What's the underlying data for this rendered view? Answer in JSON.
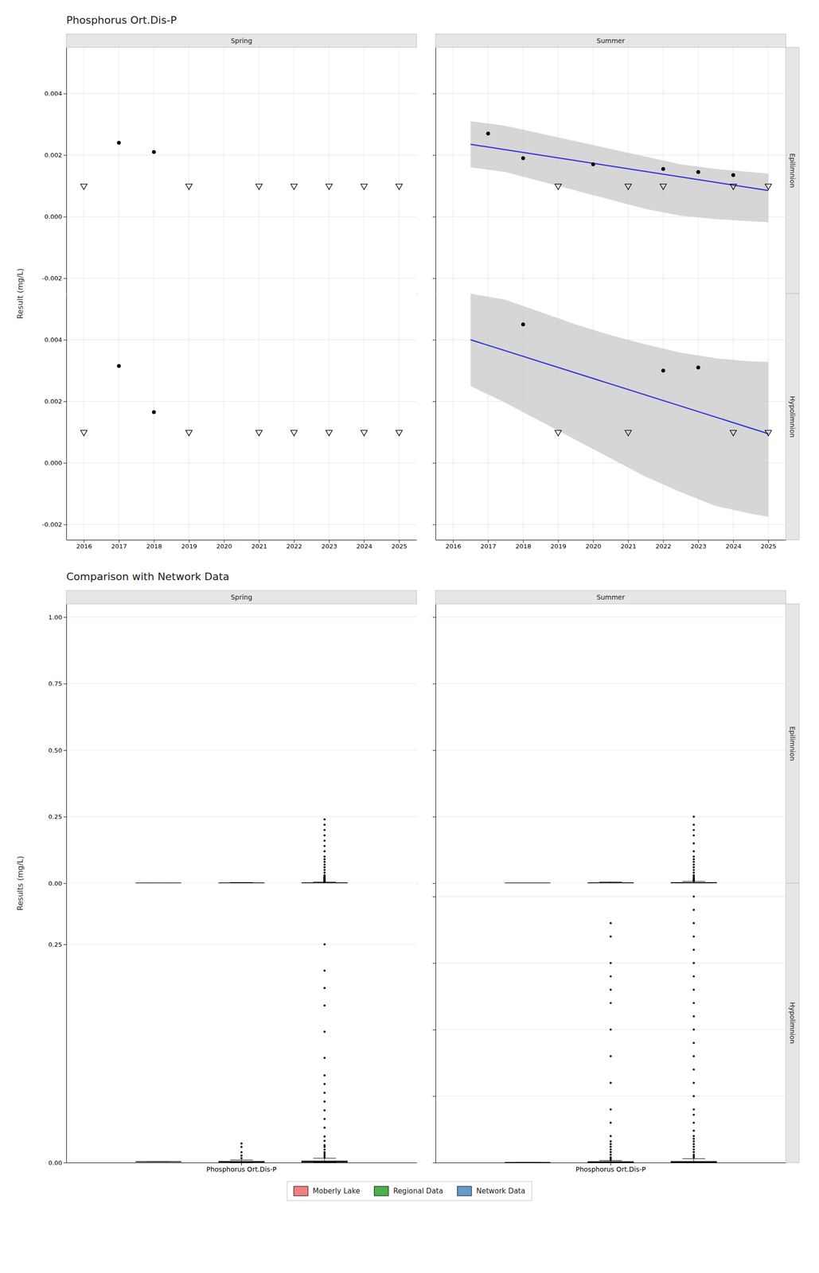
{
  "chart_data": [
    {
      "type": "scatter",
      "title": "Phosphorus Ort.Dis-P",
      "ylabel": "Result (mg/L)",
      "columns": [
        "Spring",
        "Summer"
      ],
      "rows": [
        "Epilimnion",
        "Hypolimnion"
      ],
      "xlim": [
        2015.5,
        2025.5
      ],
      "xticks": [
        2016,
        2017,
        2018,
        2019,
        2020,
        2021,
        2022,
        2023,
        2024,
        2025
      ],
      "ylim": [
        -0.0025,
        0.0055
      ],
      "yticks": [
        {
          "value": -0.002,
          "label": "-0.002"
        },
        {
          "value": 0.0,
          "label": "0.000"
        },
        {
          "value": 0.002,
          "label": "0.002"
        },
        {
          "value": 0.004,
          "label": "0.004"
        }
      ],
      "grid": true,
      "panels": [
        {
          "tick_labels": "y",
          "series": [
            {
              "type": "scatter",
              "marker": "triangle-down-open",
              "color": "#000000",
              "x": [
                2016,
                2019,
                2021,
                2022,
                2023,
                2024,
                2025
              ],
              "values": [
                0.001,
                0.001,
                0.001,
                0.001,
                0.001,
                0.001,
                0.001
              ]
            },
            {
              "type": "scatter",
              "marker": "circle",
              "color": "#000000",
              "x": [
                2017,
                2018
              ],
              "values": [
                0.0024,
                0.0021
              ]
            }
          ]
        },
        {
          "tick_labels": false,
          "series": [
            {
              "type": "area",
              "color": "#c0c0c0",
              "x": [
                2016.5,
                2017.5,
                2018.5,
                2019.5,
                2020.5,
                2021.5,
                2022.5,
                2023.5,
                2024.5,
                2025.0
              ],
              "upper": [
                0.0031,
                0.00295,
                0.0027,
                0.00245,
                0.0022,
                0.00195,
                0.0017,
                0.00155,
                0.00145,
                0.0014
              ],
              "lower": [
                0.0016,
                0.00145,
                0.00115,
                0.00085,
                0.00055,
                0.00025,
                3e-05,
                -8e-05,
                -0.00015,
                -0.00018
              ]
            },
            {
              "type": "line",
              "color": "#3333dd",
              "x": [
                2016.5,
                2025.0
              ],
              "values": [
                0.00235,
                0.00085
              ]
            },
            {
              "type": "scatter",
              "marker": "triangle-down-open",
              "color": "#000000",
              "x": [
                2019,
                2021,
                2022,
                2024,
                2025
              ],
              "values": [
                0.001,
                0.001,
                0.001,
                0.001,
                0.001
              ]
            },
            {
              "type": "scatter",
              "marker": "circle",
              "color": "#000000",
              "x": [
                2017,
                2018,
                2020,
                2022,
                2023,
                2024
              ],
              "values": [
                0.0027,
                0.0019,
                0.0017,
                0.00155,
                0.00145,
                0.00135
              ]
            }
          ]
        },
        {
          "series": [
            {
              "type": "scatter",
              "marker": "triangle-down-open",
              "color": "#000000",
              "x": [
                2016,
                2019,
                2021,
                2022,
                2023,
                2024,
                2025
              ],
              "values": [
                0.001,
                0.001,
                0.001,
                0.001,
                0.001,
                0.001,
                0.001
              ]
            },
            {
              "type": "scatter",
              "marker": "circle",
              "color": "#000000",
              "x": [
                2017,
                2018
              ],
              "values": [
                0.00315,
                0.00165
              ]
            }
          ]
        },
        {
          "tick_labels": "x",
          "series": [
            {
              "type": "area",
              "color": "#c0c0c0",
              "x": [
                2016.5,
                2017.5,
                2018.5,
                2019.5,
                2020.5,
                2021.5,
                2022.5,
                2023.5,
                2024.5,
                2025.0
              ],
              "upper": [
                0.0055,
                0.0053,
                0.0049,
                0.0045,
                0.00415,
                0.00385,
                0.00358,
                0.0034,
                0.0033,
                0.00328
              ],
              "lower": [
                0.0025,
                0.00195,
                0.00135,
                0.00075,
                0.00015,
                -0.00045,
                -0.00095,
                -0.0014,
                -0.00165,
                -0.00175
              ]
            },
            {
              "type": "line",
              "color": "#3333dd",
              "x": [
                2016.5,
                2025.0
              ],
              "values": [
                0.004,
                0.00095
              ]
            },
            {
              "type": "scatter",
              "marker": "triangle-down-open",
              "color": "#000000",
              "x": [
                2019,
                2021,
                2024,
                2025
              ],
              "values": [
                0.001,
                0.001,
                0.001,
                0.001
              ]
            },
            {
              "type": "scatter",
              "marker": "circle",
              "color": "#000000",
              "x": [
                2018,
                2022,
                2023
              ],
              "values": [
                0.0045,
                0.003,
                0.0031
              ]
            }
          ]
        }
      ]
    },
    {
      "type": "box",
      "title": "Comparison with Network Data",
      "ylabel": "Results (mg/L)",
      "columns": [
        "Spring",
        "Summer"
      ],
      "rows": [
        "Epilimnion",
        "Hypolimnion"
      ],
      "categories": [
        "Phosphorus Ort.Dis-P"
      ],
      "series": [
        {
          "name": "Moberly Lake",
          "color": "#f08080"
        },
        {
          "name": "Regional Data",
          "color": "#4daf4a"
        },
        {
          "name": "Network Data",
          "color": "#6699cc"
        }
      ],
      "legend": "bottom",
      "grid": true,
      "panels": [
        {
          "tick_labels": "y",
          "ylim": [
            0,
            1.05
          ],
          "yticks": [
            {
              "value": 0.0,
              "label": "0.00"
            },
            0.25,
            {
              "value": 0.5,
              "label": "0.50"
            },
            0.75,
            {
              "value": 1.0,
              "label": "1.00"
            }
          ],
          "boxes": [
            {
              "median": 0.001,
              "q1": 0.001,
              "q3": 0.001,
              "wlo": 0.001,
              "whi": 0.001,
              "out": []
            },
            {
              "median": 0.001,
              "q1": 0.0005,
              "q3": 0.0015,
              "wlo": 0.0001,
              "whi": 0.003,
              "out": []
            },
            {
              "median": 0.001,
              "q1": 0.0005,
              "q3": 0.002,
              "wlo": 0.0001,
              "whi": 0.005,
              "out": [
                0.006,
                0.007,
                0.008,
                0.009,
                0.01,
                0.011,
                0.012,
                0.013,
                0.014,
                0.015,
                0.016,
                0.017,
                0.018,
                0.019,
                0.02,
                0.021,
                0.022,
                0.023,
                0.024,
                0.025,
                0.03,
                0.04,
                0.05,
                0.06,
                0.07,
                0.08,
                0.09,
                0.1,
                0.12,
                0.14,
                0.16,
                0.18,
                0.2,
                0.22,
                0.24
              ]
            }
          ]
        },
        {
          "tick_labels": false,
          "ylim": [
            0,
            1.05
          ],
          "yticks": [
            {
              "value": 0.0,
              "label": "0.00"
            },
            0.25,
            {
              "value": 0.5,
              "label": "0.50"
            },
            0.75,
            {
              "value": 1.0,
              "label": "1.00"
            }
          ],
          "boxes": [
            {
              "median": 0.001,
              "q1": 0.001,
              "q3": 0.001,
              "wlo": 0.001,
              "whi": 0.001,
              "out": []
            },
            {
              "median": 0.001,
              "q1": 0.0005,
              "q3": 0.002,
              "wlo": 0.0001,
              "whi": 0.005,
              "out": []
            },
            {
              "median": 0.001,
              "q1": 0.0005,
              "q3": 0.003,
              "wlo": 0.0001,
              "whi": 0.007,
              "out": [
                0.008,
                0.009,
                0.01,
                0.012,
                0.014,
                0.016,
                0.018,
                0.02,
                0.025,
                0.03,
                0.04,
                0.05,
                0.06,
                0.07,
                0.08,
                0.09,
                0.1,
                0.12,
                0.15,
                0.18,
                0.2,
                0.22,
                0.25
              ]
            }
          ]
        },
        {
          "ylim": [
            0,
            0.32
          ],
          "yticks": [
            {
              "value": 0.0,
              "label": "0.00"
            },
            0.25
          ],
          "boxes": [
            {
              "median": 0.001,
              "q1": 0.001,
              "q3": 0.001,
              "wlo": 0.001,
              "whi": 0.001,
              "out": []
            },
            {
              "median": 0.001,
              "q1": 0.0005,
              "q3": 0.0015,
              "wlo": 0.0001,
              "whi": 0.003,
              "out": [
                0.005,
                0.008,
                0.012,
                0.018,
                0.022
              ]
            },
            {
              "median": 0.001,
              "q1": 0.0005,
              "q3": 0.002,
              "wlo": 0.0001,
              "whi": 0.005,
              "out": [
                0.006,
                0.008,
                0.01,
                0.012,
                0.015,
                0.018,
                0.02,
                0.025,
                0.03,
                0.04,
                0.05,
                0.06,
                0.07,
                0.08,
                0.09,
                0.1,
                0.12,
                0.15,
                0.18,
                0.2,
                0.22,
                0.25
              ]
            }
          ]
        },
        {
          "tick_labels": "x",
          "ylim": [
            0,
            1.05
          ],
          "yticks": [
            {
              "value": 0.0,
              "label": "0.00"
            },
            0.25,
            {
              "value": 0.5,
              "label": "0.50"
            },
            0.75,
            {
              "value": 1.0,
              "label": "1.00"
            }
          ],
          "boxes": [
            {
              "median": 0.001,
              "q1": 0.001,
              "q3": 0.001,
              "wlo": 0.001,
              "whi": 0.001,
              "out": []
            },
            {
              "median": 0.002,
              "q1": 0.001,
              "q3": 0.004,
              "wlo": 0.0005,
              "whi": 0.008,
              "out": [
                0.01,
                0.015,
                0.02,
                0.03,
                0.04,
                0.05,
                0.06,
                0.07,
                0.08,
                0.1,
                0.15,
                0.2,
                0.3,
                0.4,
                0.5,
                0.6,
                0.65,
                0.7,
                0.75,
                0.85,
                0.9
              ]
            },
            {
              "median": 0.002,
              "q1": 0.001,
              "q3": 0.005,
              "wlo": 0.0005,
              "whi": 0.015,
              "out": [
                0.02,
                0.025,
                0.03,
                0.04,
                0.05,
                0.06,
                0.07,
                0.08,
                0.09,
                0.1,
                0.12,
                0.15,
                0.18,
                0.2,
                0.25,
                0.3,
                0.35,
                0.4,
                0.45,
                0.5,
                0.55,
                0.6,
                0.65,
                0.7,
                0.75,
                0.8,
                0.85,
                0.9,
                0.95,
                1.0
              ]
            }
          ]
        }
      ]
    }
  ]
}
